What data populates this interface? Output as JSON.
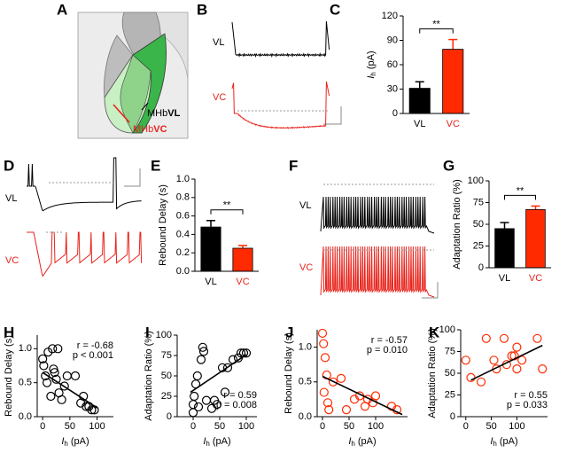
{
  "panel_a": {
    "letter": "A",
    "labels": [
      [
        "MHb",
        "VL"
      ],
      [
        "MHb",
        "VC"
      ]
    ]
  },
  "panel_b": {
    "letter": "B",
    "traces": [
      "VL",
      "VC"
    ]
  },
  "panel_d": {
    "letter": "D",
    "traces": [
      "VL",
      "VC"
    ]
  },
  "panel_f": {
    "letter": "F",
    "traces": [
      "VL",
      "VC"
    ]
  },
  "chart_data": [
    {
      "type": "bar",
      "panel": "C",
      "ylabel": {
        "italic": "I",
        "sub": "h",
        "rest": "(pA)"
      },
      "categories": [
        "VL",
        "VC"
      ],
      "values": [
        31,
        79
      ],
      "errors": [
        8,
        12
      ],
      "colors": [
        "#000000",
        "#ff2a00"
      ],
      "ylim": [
        0,
        120
      ],
      "yticks": [
        0,
        30,
        60,
        90,
        120
      ],
      "significance": "**"
    },
    {
      "type": "bar",
      "panel": "E",
      "ylabel": "Rebound Delay (s)",
      "categories": [
        "VL",
        "VC"
      ],
      "values": [
        0.48,
        0.25
      ],
      "errors": [
        0.07,
        0.03
      ],
      "colors": [
        "#000000",
        "#ff2a00"
      ],
      "ylim": [
        0,
        1.0
      ],
      "yticks": [
        {
          "value": 0,
          "label": "0.0"
        },
        0.2,
        0.4,
        0.6,
        0.8,
        {
          "value": 1.0,
          "label": "1.0"
        }
      ],
      "significance": "**"
    },
    {
      "type": "bar",
      "panel": "G",
      "ylabel": "Adaptation Ratio (%)",
      "categories": [
        "VL",
        "VC"
      ],
      "values": [
        45,
        67
      ],
      "errors": [
        7,
        4
      ],
      "colors": [
        "#000000",
        "#ff2a00"
      ],
      "ylim": [
        0,
        100
      ],
      "yticks": [
        0,
        25,
        50,
        75,
        100
      ],
      "significance": "**"
    },
    {
      "type": "scatter",
      "panel": "H",
      "ylabel": "Rebound Delay (s)",
      "xlabel": {
        "italic": "I",
        "sub": "h",
        "rest": "(pA)"
      },
      "color": "#000000",
      "annotations": [
        "r = -0.68",
        "p < 0.001"
      ],
      "x": [
        0,
        2,
        5,
        8,
        10,
        15,
        18,
        20,
        22,
        25,
        28,
        30,
        35,
        40,
        45,
        60,
        70,
        75,
        80,
        85,
        90,
        95
      ],
      "y": [
        0.85,
        0.75,
        0.6,
        0.5,
        0.95,
        0.3,
        1.0,
        0.7,
        0.65,
        0.55,
        1.0,
        0.35,
        0.25,
        0.45,
        0.6,
        0.6,
        0.2,
        0.3,
        0.15,
        0.15,
        0.1,
        0.1
      ],
      "fit_x": [
        0,
        100
      ],
      "fit_y": [
        0.65,
        0.13
      ],
      "xlim": [
        -10,
        130
      ],
      "xticks": [
        0,
        50,
        100
      ],
      "ylim": [
        0,
        1.2
      ],
      "yticks": [
        {
          "value": 0,
          "label": "0.0"
        },
        0.5,
        {
          "value": 1,
          "label": "1.0"
        }
      ]
    },
    {
      "type": "scatter",
      "panel": "I",
      "ylabel": "Adaptation Ratio (%)",
      "xlabel": {
        "italic": "I",
        "sub": "h",
        "rest": "(pA)"
      },
      "color": "#000000",
      "annotations": [
        "r = 0.59",
        "p = 0.008"
      ],
      "x": [
        0,
        0,
        2,
        5,
        8,
        10,
        15,
        18,
        20,
        25,
        35,
        40,
        45,
        55,
        60,
        65,
        75,
        85,
        90,
        95,
        100
      ],
      "y": [
        5,
        15,
        25,
        40,
        50,
        12,
        70,
        85,
        80,
        20,
        10,
        20,
        15,
        60,
        30,
        60,
        70,
        72,
        78,
        78,
        78
      ],
      "fit_x": [
        -5,
        100
      ],
      "fit_y": [
        30,
        76
      ],
      "xlim": [
        -30,
        120
      ],
      "xticks": [
        0,
        50,
        100
      ],
      "ylim": [
        0,
        100
      ],
      "yticks": [
        0,
        25,
        50,
        75,
        100
      ]
    },
    {
      "type": "scatter",
      "panel": "J",
      "ylabel": "Rebound Delay (s)",
      "xlabel": {
        "italic": "I",
        "sub": "h",
        "rest": "(pA)"
      },
      "color": "#ff2a00",
      "annotations": [
        "r = -0.57",
        "p = 0.010"
      ],
      "x": [
        0,
        2,
        3,
        5,
        8,
        10,
        12,
        20,
        35,
        45,
        60,
        70,
        80,
        85,
        95,
        100,
        130,
        140
      ],
      "y": [
        1.2,
        1.05,
        0.35,
        0.85,
        0.6,
        0.2,
        0.1,
        0.5,
        0.55,
        0.1,
        0.25,
        0.3,
        0.15,
        0.25,
        0.2,
        0.3,
        0.15,
        0.1
      ],
      "fit_x": [
        0,
        150
      ],
      "fit_y": [
        0.58,
        0.03
      ],
      "xlim": [
        -10,
        160
      ],
      "xticks": [
        0,
        50,
        100
      ],
      "ylim": [
        0,
        1.25
      ],
      "yticks": [
        {
          "value": 0,
          "label": "0.0"
        },
        0.5,
        {
          "value": 1,
          "label": "1.0"
        }
      ]
    },
    {
      "type": "scatter",
      "panel": "K",
      "ylabel": "Adaptation Ratio (%)",
      "xlabel": {
        "italic": "I",
        "sub": "h",
        "rest": "(pA)"
      },
      "color": "#ff2a00",
      "annotations": [
        "r = 0.55",
        "p = 0.033"
      ],
      "x": [
        0,
        10,
        30,
        40,
        55,
        60,
        75,
        80,
        90,
        95,
        100,
        100,
        110,
        140,
        150
      ],
      "y": [
        65,
        45,
        40,
        90,
        65,
        55,
        90,
        60,
        70,
        70,
        80,
        55,
        65,
        90,
        55
      ],
      "fit_x": [
        10,
        150
      ],
      "fit_y": [
        42,
        82
      ],
      "xlim": [
        -10,
        160
      ],
      "xticks": [
        0,
        50,
        100
      ],
      "ylim": [
        0,
        100
      ],
      "yticks": [
        0,
        25,
        50,
        75,
        100
      ]
    }
  ]
}
